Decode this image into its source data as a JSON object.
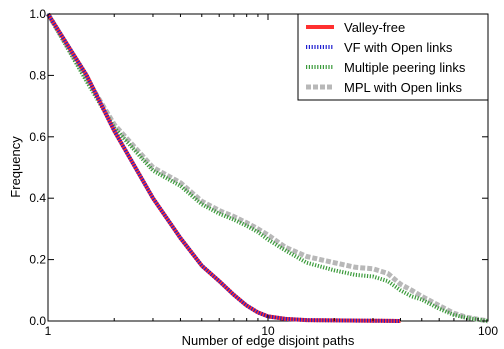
{
  "chart_data": {
    "type": "line",
    "title": "",
    "xlabel": "Number of edge disjoint paths",
    "ylabel": "Frequency",
    "xscale": "log",
    "xlim": [
      1,
      100
    ],
    "ylim": [
      0,
      1.0
    ],
    "xticks": [
      1,
      10,
      100
    ],
    "xtick_labels": [
      "1",
      "10",
      "100"
    ],
    "yticks": [
      0.0,
      0.2,
      0.4,
      0.6,
      0.8,
      1.0
    ],
    "ytick_labels": [
      "0.0",
      "0.2",
      "0.4",
      "0.6",
      "0.8",
      "1.0"
    ],
    "grid": false,
    "legend_position": "top-right",
    "series": [
      {
        "name": "Valley-free",
        "color": "#ff3030",
        "style": "solid",
        "x": [
          1,
          1.5,
          2,
          3,
          4,
          5,
          6,
          7,
          8,
          9,
          10,
          12,
          15,
          20,
          30,
          40
        ],
        "y": [
          1.0,
          0.8,
          0.62,
          0.4,
          0.27,
          0.18,
          0.13,
          0.085,
          0.05,
          0.028,
          0.015,
          0.007,
          0.003,
          0.002,
          0.001,
          0.0
        ]
      },
      {
        "name": "VF with Open links",
        "color": "#2020d0",
        "style": "dotted",
        "x": [
          1,
          1.5,
          2,
          3,
          4,
          5,
          6,
          7,
          8,
          9,
          10,
          12,
          15,
          20,
          30,
          40
        ],
        "y": [
          1.0,
          0.8,
          0.62,
          0.4,
          0.27,
          0.18,
          0.13,
          0.085,
          0.05,
          0.028,
          0.015,
          0.007,
          0.003,
          0.002,
          0.001,
          0.0
        ]
      },
      {
        "name": "Multiple peering links",
        "color": "#3a9a3a",
        "style": "dotted",
        "x": [
          1,
          1.5,
          2,
          3,
          4,
          5,
          6,
          7,
          8,
          9,
          10,
          12,
          15,
          20,
          25,
          30,
          35,
          40,
          45,
          50,
          60,
          70,
          80,
          100
        ],
        "y": [
          1.0,
          0.78,
          0.63,
          0.49,
          0.44,
          0.38,
          0.35,
          0.33,
          0.31,
          0.29,
          0.265,
          0.23,
          0.19,
          0.165,
          0.15,
          0.145,
          0.13,
          0.1,
          0.08,
          0.07,
          0.04,
          0.02,
          0.01,
          0.0
        ]
      },
      {
        "name": "MPL with Open links",
        "color": "#b8b8b8",
        "style": "dashed",
        "x": [
          1,
          1.5,
          2,
          3,
          4,
          5,
          6,
          7,
          8,
          9,
          10,
          12,
          15,
          20,
          25,
          30,
          35,
          40,
          45,
          50,
          60,
          70,
          80,
          100
        ],
        "y": [
          1.0,
          0.79,
          0.64,
          0.5,
          0.45,
          0.39,
          0.36,
          0.34,
          0.32,
          0.3,
          0.28,
          0.24,
          0.21,
          0.19,
          0.175,
          0.17,
          0.155,
          0.12,
          0.1,
          0.08,
          0.05,
          0.025,
          0.012,
          0.0
        ]
      }
    ]
  }
}
